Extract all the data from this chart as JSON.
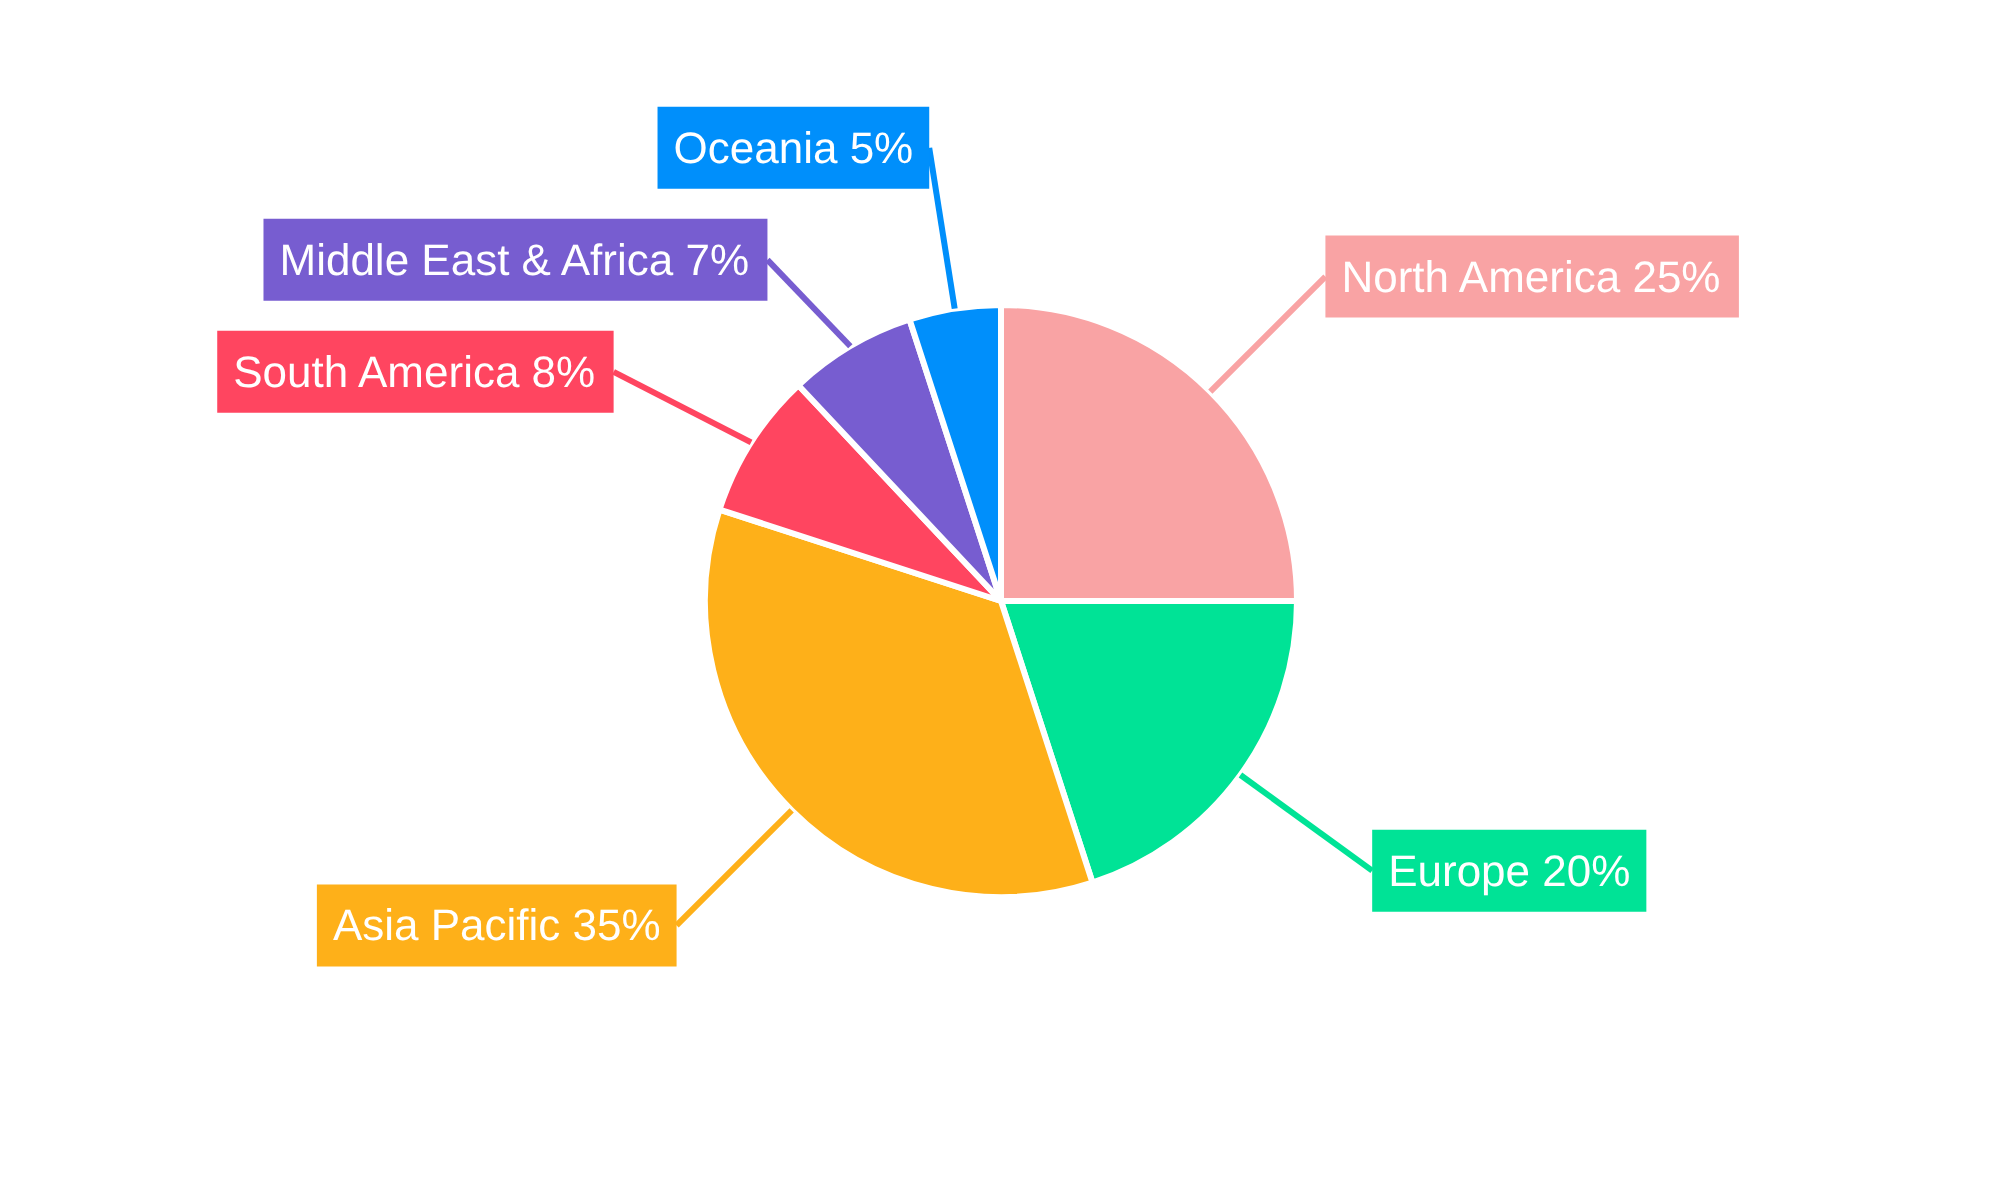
{
  "chart_data": {
    "type": "pie",
    "categories": [
      "North America",
      "Europe",
      "Asia Pacific",
      "South America",
      "Middle East & Africa",
      "Oceania"
    ],
    "values": [
      25,
      20,
      35,
      8,
      7,
      5
    ],
    "colors": [
      "#f9a3a4",
      "#00e396",
      "#feb019",
      "#ff4560",
      "#775dd0",
      "#008ffb"
    ],
    "value_labels": [
      "25%",
      "20%",
      "35%",
      "8%",
      "7%",
      "5%"
    ]
  }
}
